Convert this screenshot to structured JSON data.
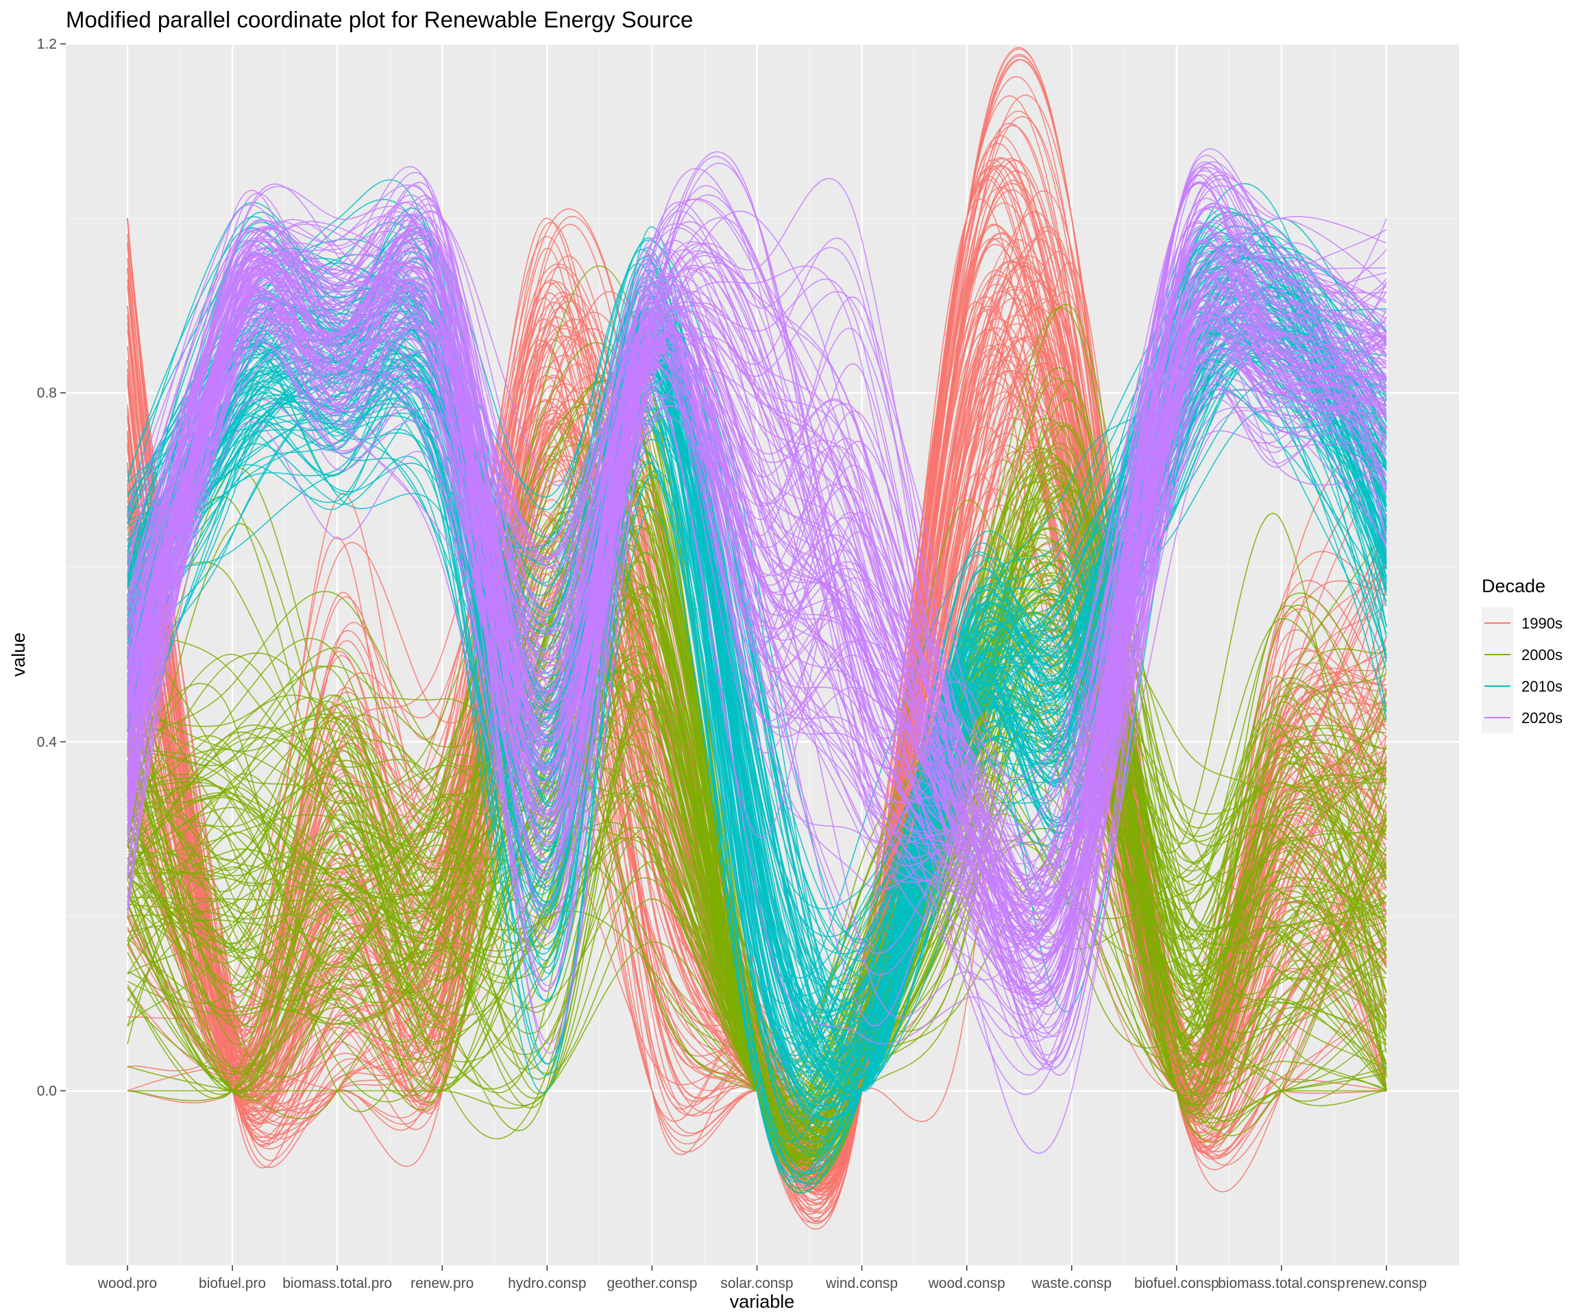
{
  "chart_data": {
    "type": "line",
    "title": "Modified parallel coordinate plot for Renewable Energy Source",
    "xlabel": "variable",
    "ylabel": "value",
    "ylim": [
      -0.2,
      1.2
    ],
    "yticks": [
      0.0,
      0.4,
      0.8,
      1.2
    ],
    "ytick_labels": [
      "0.0",
      "0.4",
      "0.8",
      "1.2"
    ],
    "grid": true,
    "legend_title": "Decade",
    "legend_position": "right",
    "categories": [
      "wood.pro",
      "biofuel.pro",
      "biomass.total.pro",
      "renew.pro",
      "hydro.consp",
      "geother.consp",
      "solar.consp",
      "wind.consp",
      "wood.consp",
      "waste.consp",
      "biofuel.consp",
      "biomass.total.consp",
      "renew.consp"
    ],
    "series": [
      {
        "name": "1990s",
        "color": "#F8766D",
        "count": 120,
        "values": [
          0.6,
          0.04,
          0.25,
          0.2,
          0.75,
          0.35,
          0.02,
          0.0,
          0.8,
          0.75,
          0.02,
          0.3,
          0.3
        ],
        "spread": [
          0.35,
          0.04,
          0.18,
          0.12,
          0.18,
          0.22,
          0.06,
          0.06,
          0.2,
          0.2,
          0.05,
          0.14,
          0.2
        ]
      },
      {
        "name": "2000s",
        "color": "#7CAE00",
        "count": 120,
        "values": [
          0.3,
          0.25,
          0.25,
          0.22,
          0.4,
          0.5,
          0.0,
          0.05,
          0.4,
          0.55,
          0.15,
          0.25,
          0.2
        ],
        "spread": [
          0.12,
          0.2,
          0.14,
          0.12,
          0.22,
          0.18,
          0.07,
          0.07,
          0.1,
          0.18,
          0.12,
          0.18,
          0.16
        ]
      },
      {
        "name": "2010s",
        "color": "#00BFC4",
        "count": 120,
        "values": [
          0.55,
          0.8,
          0.82,
          0.8,
          0.35,
          0.85,
          0.25,
          0.05,
          0.45,
          0.45,
          0.8,
          0.88,
          0.68
        ],
        "spread": [
          0.08,
          0.08,
          0.08,
          0.08,
          0.15,
          0.07,
          0.15,
          0.08,
          0.08,
          0.1,
          0.08,
          0.06,
          0.1
        ]
      },
      {
        "name": "2020s",
        "color": "#C77CFF",
        "count": 120,
        "values": [
          0.4,
          0.88,
          0.85,
          0.86,
          0.4,
          0.87,
          0.7,
          0.55,
          0.3,
          0.25,
          0.85,
          0.85,
          0.8
        ],
        "spread": [
          0.1,
          0.06,
          0.07,
          0.09,
          0.12,
          0.05,
          0.18,
          0.18,
          0.08,
          0.1,
          0.09,
          0.08,
          0.08
        ]
      }
    ]
  }
}
